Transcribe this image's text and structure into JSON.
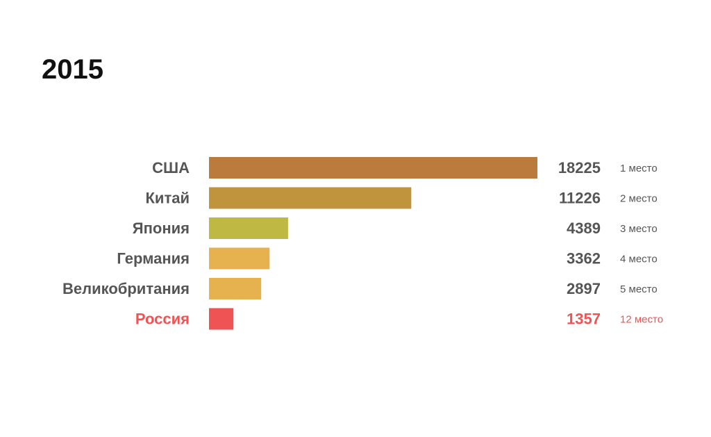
{
  "chart_data": {
    "type": "bar",
    "title": "2015",
    "orientation": "horizontal",
    "categories": [
      "США",
      "Китай",
      "Япония",
      "Германия",
      "Великобритания",
      "Россия"
    ],
    "values": [
      18225,
      11226,
      4389,
      3362,
      2897,
      1357
    ],
    "ranks": [
      "1 место",
      "2 место",
      "3 место",
      "4 место",
      "5 место",
      "12 место"
    ],
    "colors": [
      "#bb7b3c",
      "#c0933d",
      "#bfb943",
      "#e6b24f",
      "#e6b24f",
      "#f05353"
    ],
    "highlight": {
      "category": "Россия",
      "color": "#f05353"
    },
    "xlim": [
      0,
      18225
    ],
    "grid": false,
    "legend": "none"
  }
}
